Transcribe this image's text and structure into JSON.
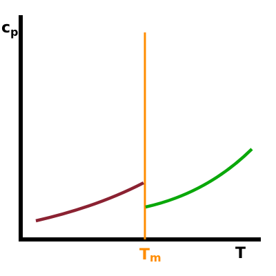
{
  "axes": {
    "y_label": {
      "text": "c",
      "subscript": "p"
    },
    "x_label": "T",
    "marker_label": {
      "text": "T",
      "subscript": "m"
    }
  }
}
